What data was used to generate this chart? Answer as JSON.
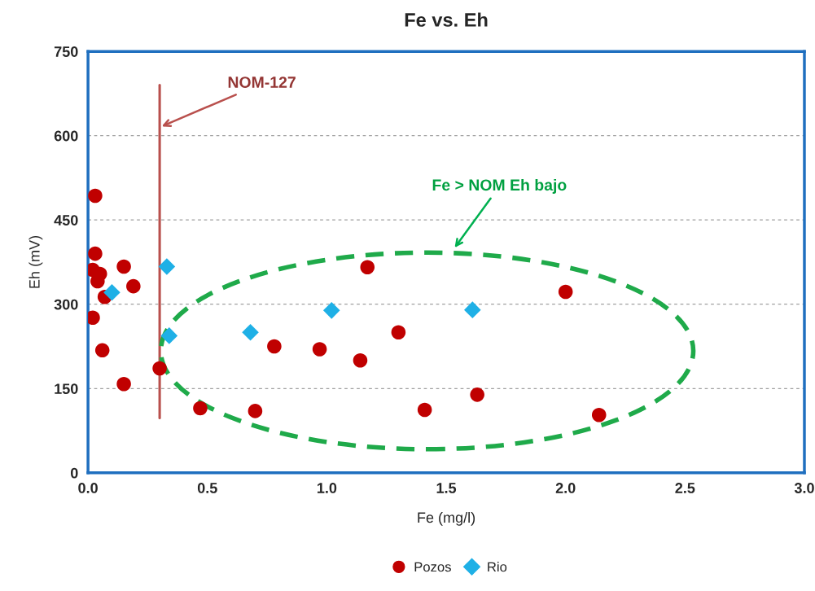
{
  "chart_data": {
    "type": "scatter",
    "title": "Fe vs. Eh",
    "xlabel": "Fe (mg/l)",
    "ylabel": "Eh (mV)",
    "xlim": [
      0,
      3
    ],
    "xticks": [
      {
        "value": 0,
        "label": "0.0"
      },
      {
        "value": 0.5,
        "label": "0.5"
      },
      {
        "value": 1,
        "label": "1.0"
      },
      {
        "value": 1.5,
        "label": "1.5"
      },
      {
        "value": 2,
        "label": "2.0"
      },
      {
        "value": 2.5,
        "label": "2.5"
      },
      {
        "value": 3,
        "label": "3.0"
      }
    ],
    "ylim": [
      0,
      750
    ],
    "yticks": [
      0,
      150,
      300,
      450,
      600,
      750
    ],
    "grid": "y",
    "legend": "bottom",
    "series": [
      {
        "name": "Pozos",
        "color": "#c00000",
        "marker": "circle",
        "x": [
          0.03,
          0.03,
          0.02,
          0.05,
          0.04,
          0.07,
          0.02,
          0.06,
          0.15,
          0.19,
          0.15,
          0.3,
          0.47,
          0.7,
          0.78,
          0.97,
          1.14,
          1.17,
          1.3,
          1.41,
          1.63,
          2.0,
          2.14
        ],
        "values": [
          493,
          390,
          361,
          354,
          341,
          313,
          276,
          218,
          367,
          332,
          158,
          186,
          115,
          110,
          225,
          220,
          200,
          366,
          250,
          112,
          139,
          322,
          103
        ]
      },
      {
        "name": "Rio",
        "color": "#1fb0e6",
        "marker": "diamond",
        "x": [
          0.1,
          0.33,
          0.34,
          0.68,
          1.02,
          1.61
        ],
        "values": [
          321,
          367,
          244,
          250,
          289,
          290
        ]
      }
    ],
    "ref_lines": [
      {
        "axis": "x",
        "value": 0.3,
        "label": "NOM-127",
        "color": "#b9504d"
      }
    ],
    "annotations": [
      "Fe > NOM Eh bajo"
    ]
  }
}
